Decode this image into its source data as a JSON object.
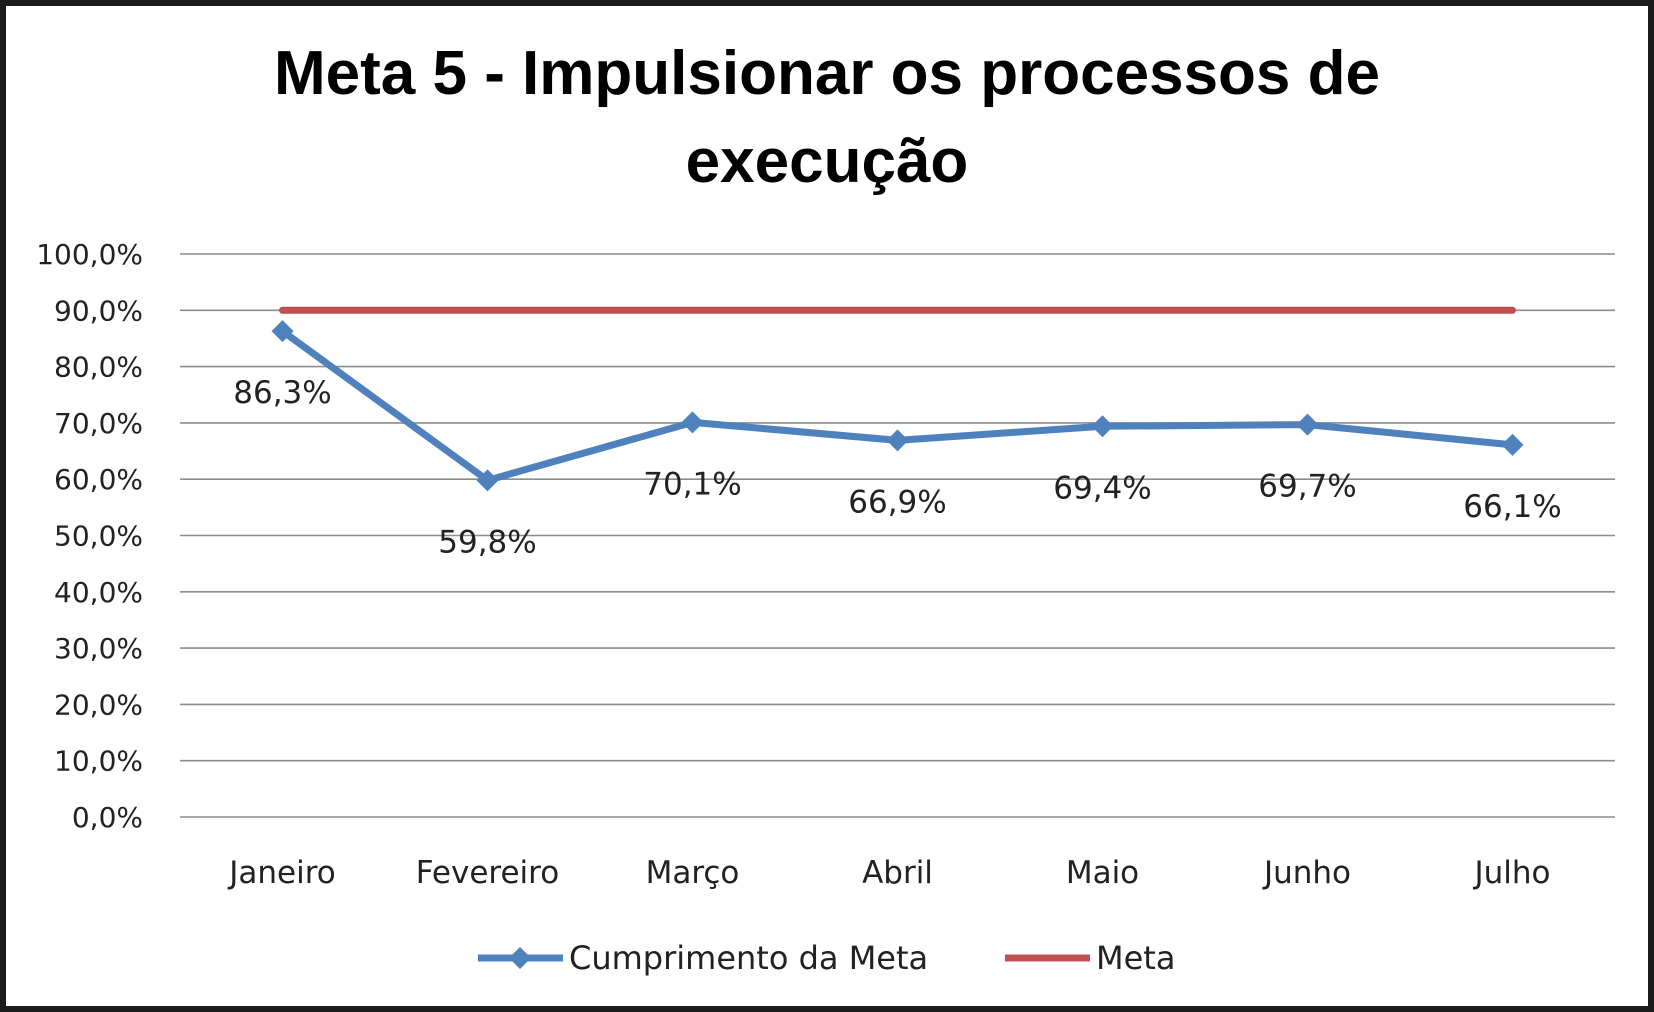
{
  "chart_data": {
    "type": "line",
    "title_lines": [
      "Meta 5 - Impulsionar os processos de",
      "execução"
    ],
    "categories": [
      "Janeiro",
      "Fevereiro",
      "Março",
      "Abril",
      "Maio",
      "Junho",
      "Julho"
    ],
    "series": [
      {
        "name": "Cumprimento da Meta",
        "values": [
          86.3,
          59.8,
          70.1,
          66.9,
          69.4,
          69.7,
          66.1
        ],
        "data_labels": [
          "86,3%",
          "59,8%",
          "70,1%",
          "66,9%",
          "69,4%",
          "69,7%",
          "66,1%"
        ],
        "color": "#4f81bd",
        "marker": "diamond"
      },
      {
        "name": "Meta",
        "values": [
          90,
          90,
          90,
          90,
          90,
          90,
          90
        ],
        "color": "#c0504d",
        "marker": "none"
      }
    ],
    "y_ticks": [
      "0,0%",
      "10,0%",
      "20,0%",
      "30,0%",
      "40,0%",
      "50,0%",
      "60,0%",
      "70,0%",
      "80,0%",
      "90,0%",
      "100,0%"
    ],
    "ylim": [
      0,
      100
    ],
    "grid": true,
    "legend_position": "bottom"
  }
}
